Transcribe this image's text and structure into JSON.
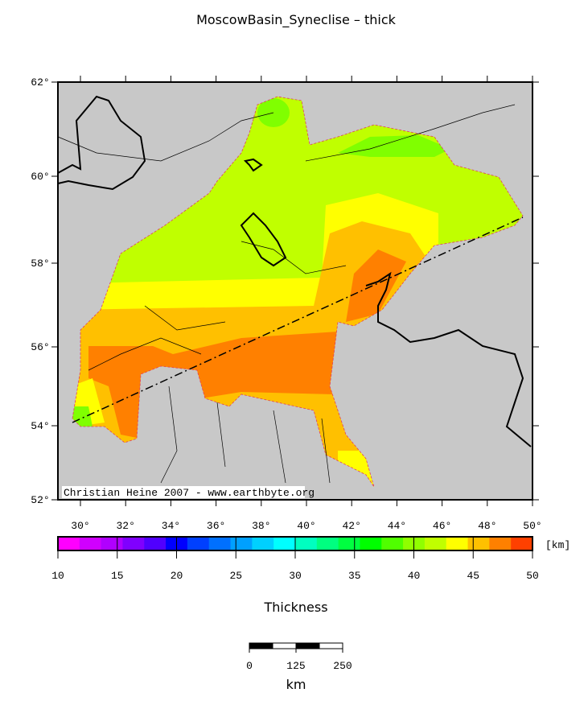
{
  "title": "MoscowBasin_Syneclise – thick",
  "map": {
    "lat_ticks": [
      "62°",
      "60°",
      "58°",
      "56°",
      "54°",
      "52°"
    ],
    "lon_ticks": [
      "30°",
      "32°",
      "34°",
      "36°",
      "38°",
      "40°",
      "42°",
      "44°",
      "46°",
      "48°",
      "50°"
    ],
    "credit": "Christian Heine 2007 - www.earthbyte.org"
  },
  "colorbar": {
    "ticks": [
      10,
      15,
      20,
      25,
      30,
      35,
      40,
      45,
      50
    ],
    "unit": "[km]",
    "label": "Thickness"
  },
  "scale_bar": {
    "ticks": [
      0,
      125,
      250
    ],
    "unit": "km"
  }
}
